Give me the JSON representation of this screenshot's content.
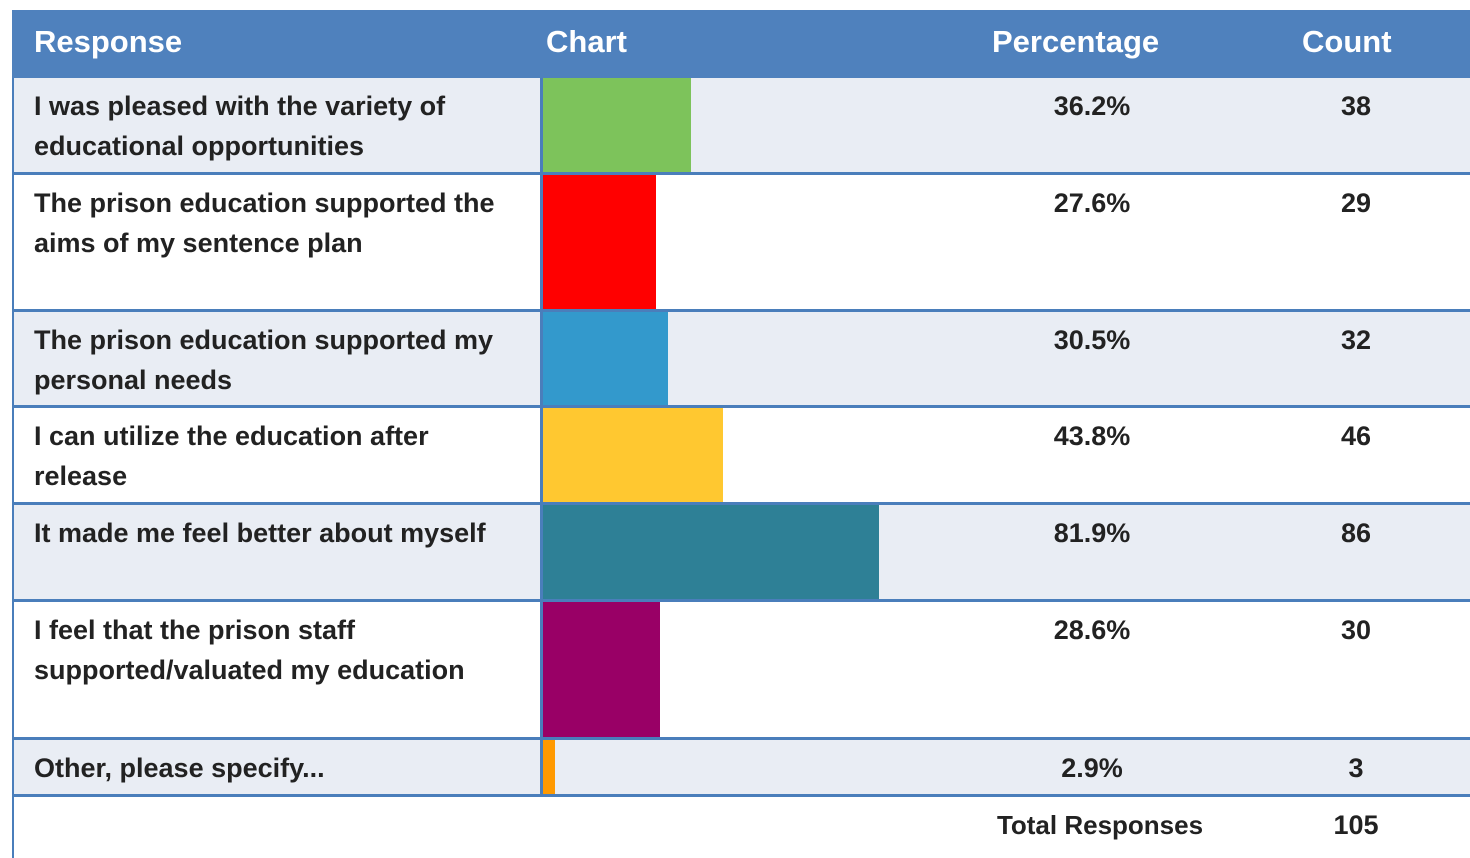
{
  "chart_data": {
    "type": "bar",
    "headers": [
      "Response",
      "Chart",
      "Percentage",
      "Count"
    ],
    "categories": [
      "I was pleased with the variety of educational opportunities",
      "The prison education supported the aims of my sentence plan",
      "The prison education supported my personal needs",
      "I can utilize the education after release",
      "It made me feel better about myself",
      "I feel that the prison staff supported/valuated my education",
      "Other, please specify..."
    ],
    "values": [
      36.2,
      27.6,
      30.5,
      43.8,
      81.9,
      28.6,
      2.9
    ],
    "value_labels": [
      "36.2%",
      "27.6%",
      "30.5%",
      "43.8%",
      "81.9%",
      "28.6%",
      "2.9%"
    ],
    "colors": [
      "#7dc35b",
      "#ff0000",
      "#3399cc",
      "#ffc830",
      "#2e8096",
      "#990066",
      "#ff9900"
    ],
    "counts": [
      38,
      29,
      32,
      46,
      86,
      30,
      3
    ],
    "xlim": [
      0,
      100
    ],
    "total_label": "Total Responses",
    "total": 105
  }
}
